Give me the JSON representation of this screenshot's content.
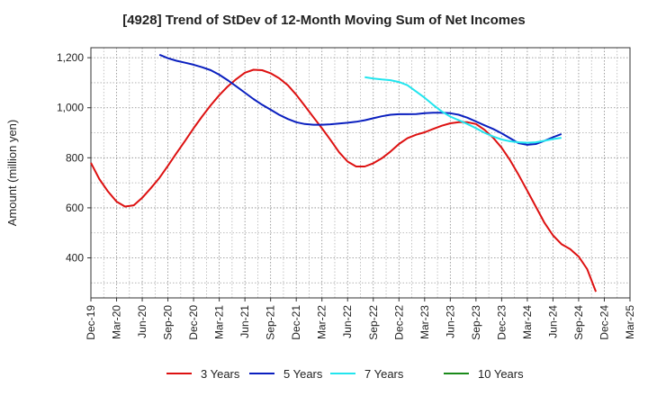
{
  "chart_data": {
    "type": "line",
    "title": "[4928]  Trend of StDev of 12-Month Moving Sum of Net Incomes",
    "ylabel": "Amount (million yen)",
    "xlabel": "",
    "ylim": [
      240,
      1240
    ],
    "yticks": [
      400,
      600,
      800,
      1000,
      1200
    ],
    "ytick_labels": [
      "400",
      "600",
      "800",
      "1,000",
      "1,200"
    ],
    "x_categories": [
      "Dec-19",
      "Mar-20",
      "Jun-20",
      "Sep-20",
      "Dec-20",
      "Mar-21",
      "Jun-21",
      "Sep-21",
      "Dec-21",
      "Mar-22",
      "Jun-22",
      "Sep-22",
      "Dec-22",
      "Mar-23",
      "Jun-23",
      "Sep-23",
      "Dec-23",
      "Mar-24",
      "Jun-24",
      "Sep-24",
      "Dec-24",
      "Mar-25"
    ],
    "grid": true,
    "legend_position": "bottom",
    "series": [
      {
        "name": "3 Years",
        "color": "#dd1111",
        "values": [
          [
            0,
            780
          ],
          [
            0.33,
            715
          ],
          [
            0.67,
            665
          ],
          [
            1,
            625
          ],
          [
            1.33,
            605
          ],
          [
            1.67,
            610
          ],
          [
            2,
            640
          ],
          [
            2.33,
            678
          ],
          [
            2.67,
            720
          ],
          [
            3,
            768
          ],
          [
            3.33,
            818
          ],
          [
            3.67,
            868
          ],
          [
            4,
            918
          ],
          [
            4.33,
            965
          ],
          [
            4.67,
            1010
          ],
          [
            5,
            1050
          ],
          [
            5.33,
            1085
          ],
          [
            5.67,
            1115
          ],
          [
            6,
            1140
          ],
          [
            6.33,
            1152
          ],
          [
            6.67,
            1150
          ],
          [
            7,
            1138
          ],
          [
            7.33,
            1118
          ],
          [
            7.67,
            1090
          ],
          [
            8,
            1052
          ],
          [
            8.33,
            1008
          ],
          [
            8.67,
            962
          ],
          [
            9,
            918
          ],
          [
            9.33,
            872
          ],
          [
            9.67,
            822
          ],
          [
            10,
            785
          ],
          [
            10.33,
            765
          ],
          [
            10.67,
            765
          ],
          [
            11,
            778
          ],
          [
            11.33,
            798
          ],
          [
            11.67,
            825
          ],
          [
            12,
            855
          ],
          [
            12.33,
            878
          ],
          [
            12.67,
            892
          ],
          [
            13,
            902
          ],
          [
            13.33,
            915
          ],
          [
            13.67,
            928
          ],
          [
            14,
            938
          ],
          [
            14.33,
            942
          ],
          [
            14.67,
            942
          ],
          [
            15,
            935
          ],
          [
            15.33,
            912
          ],
          [
            15.67,
            880
          ],
          [
            16,
            840
          ],
          [
            16.33,
            790
          ],
          [
            16.67,
            730
          ],
          [
            17,
            668
          ],
          [
            17.33,
            605
          ],
          [
            17.67,
            540
          ],
          [
            18,
            490
          ],
          [
            18.33,
            455
          ],
          [
            18.67,
            435
          ],
          [
            19,
            405
          ],
          [
            19.33,
            355
          ],
          [
            19.67,
            265
          ]
        ]
      },
      {
        "name": "5 Years",
        "color": "#0a1fbf",
        "values": [
          [
            2.67,
            1212
          ],
          [
            3,
            1198
          ],
          [
            3.33,
            1188
          ],
          [
            3.67,
            1180
          ],
          [
            4,
            1172
          ],
          [
            4.33,
            1162
          ],
          [
            4.67,
            1150
          ],
          [
            5,
            1132
          ],
          [
            5.33,
            1110
          ],
          [
            5.67,
            1085
          ],
          [
            6,
            1060
          ],
          [
            6.33,
            1035
          ],
          [
            6.67,
            1012
          ],
          [
            7,
            992
          ],
          [
            7.33,
            972
          ],
          [
            7.67,
            955
          ],
          [
            8,
            942
          ],
          [
            8.33,
            935
          ],
          [
            8.67,
            932
          ],
          [
            9,
            932
          ],
          [
            9.33,
            934
          ],
          [
            9.67,
            937
          ],
          [
            10,
            940
          ],
          [
            10.33,
            944
          ],
          [
            10.67,
            950
          ],
          [
            11,
            958
          ],
          [
            11.33,
            966
          ],
          [
            11.67,
            972
          ],
          [
            12,
            974
          ],
          [
            12.33,
            974
          ],
          [
            12.67,
            975
          ],
          [
            13,
            978
          ],
          [
            13.33,
            980
          ],
          [
            13.67,
            980
          ],
          [
            14,
            978
          ],
          [
            14.33,
            972
          ],
          [
            14.67,
            960
          ],
          [
            15,
            945
          ],
          [
            15.33,
            930
          ],
          [
            15.67,
            915
          ],
          [
            16,
            898
          ],
          [
            16.33,
            878
          ],
          [
            16.67,
            858
          ],
          [
            17,
            852
          ],
          [
            17.33,
            855
          ],
          [
            17.67,
            868
          ],
          [
            18,
            882
          ],
          [
            18.33,
            895
          ]
        ]
      },
      {
        "name": "7 Years",
        "color": "#22e5ee",
        "values": [
          [
            10.67,
            1122
          ],
          [
            11,
            1117
          ],
          [
            11.33,
            1113
          ],
          [
            11.67,
            1110
          ],
          [
            12,
            1103
          ],
          [
            12.33,
            1090
          ],
          [
            12.67,
            1065
          ],
          [
            13,
            1040
          ],
          [
            13.33,
            1012
          ],
          [
            13.67,
            985
          ],
          [
            14,
            965
          ],
          [
            14.33,
            950
          ],
          [
            14.67,
            935
          ],
          [
            15,
            918
          ],
          [
            15.33,
            900
          ],
          [
            15.67,
            885
          ],
          [
            16,
            873
          ],
          [
            16.33,
            866
          ],
          [
            16.67,
            862
          ],
          [
            17,
            860
          ],
          [
            17.33,
            862
          ],
          [
            17.67,
            868
          ],
          [
            18,
            875
          ],
          [
            18.33,
            880
          ]
        ]
      },
      {
        "name": "10 Years",
        "color": "#1a8a1a",
        "values": []
      }
    ]
  }
}
